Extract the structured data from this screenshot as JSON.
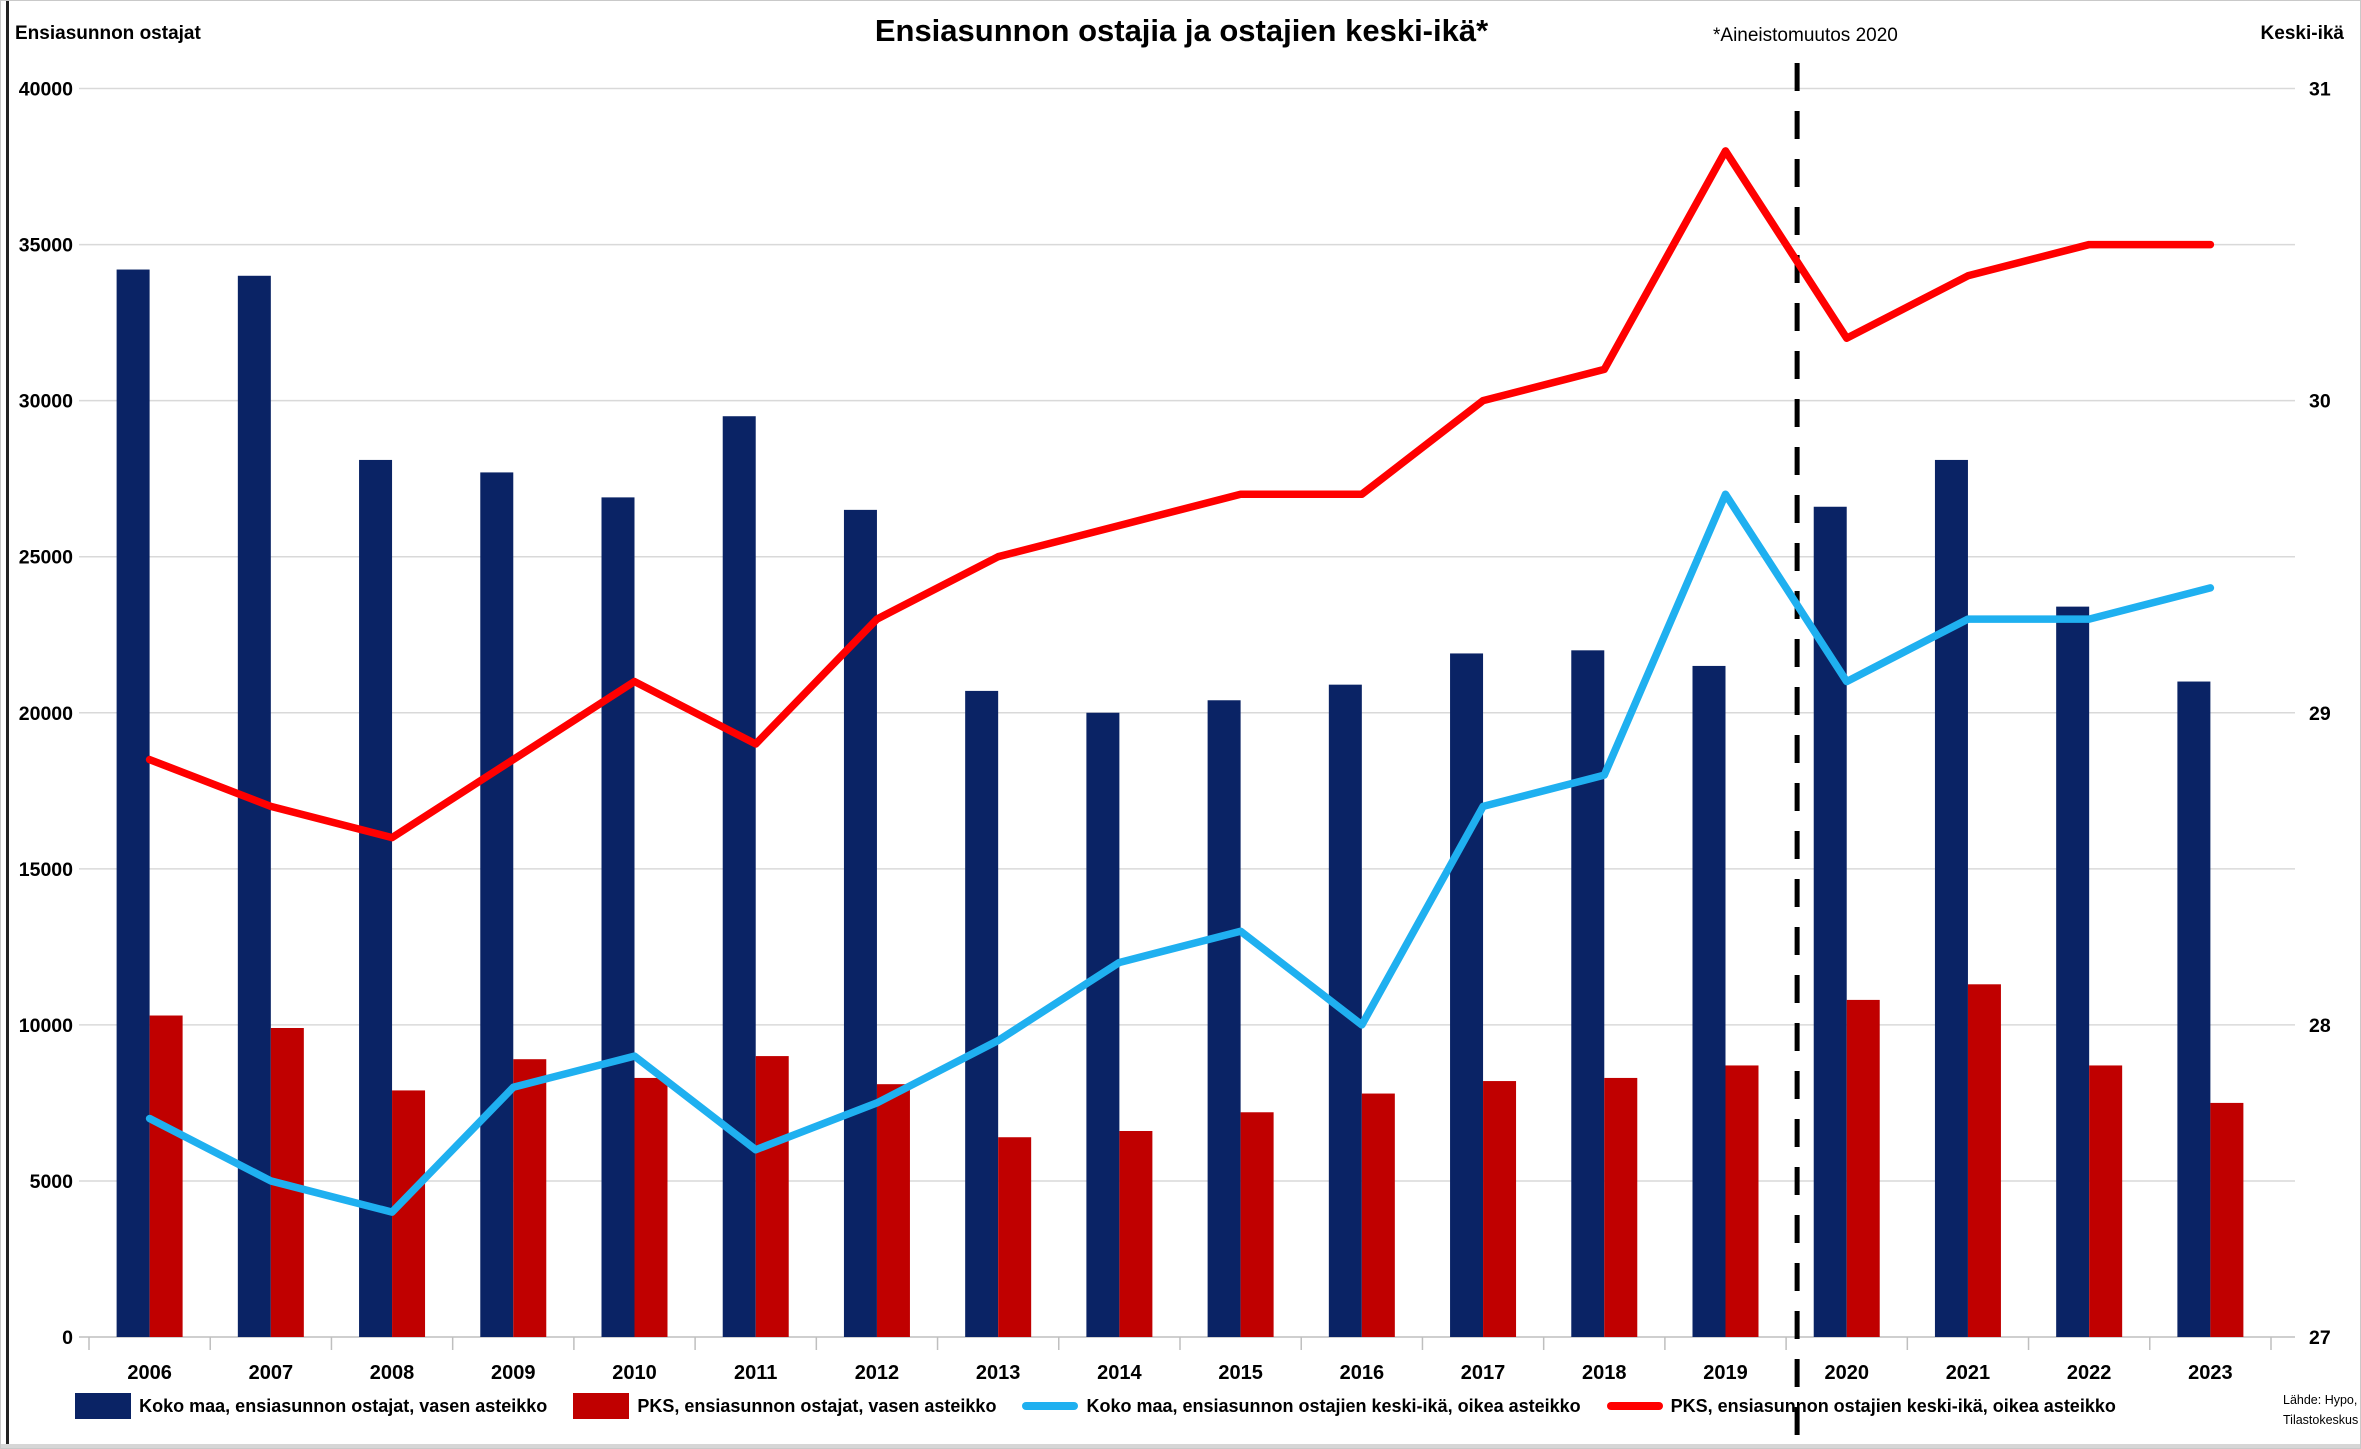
{
  "header": {
    "title": "Ensiasunnon ostajia ja ostajien keski-ikä*",
    "left_axis_title": "Ensiasunnon ostajat",
    "right_axis_title": "Keski-ikä",
    "annotation": "*Aineistomuutos 2020"
  },
  "source": {
    "line1": "Lähde: Hypo,",
    "line2": "Tilastokeskus"
  },
  "colors": {
    "koko_maa_bar": "#0A2365",
    "pks_bar": "#C00000",
    "koko_maa_line": "#1FB0F0",
    "pks_line": "#FF0000",
    "gridline": "#D9D9D9",
    "axis": "#BFBFBF",
    "dashed_divider": "#000000",
    "background": "#FFFFFF"
  },
  "chart_data": {
    "type": "bar+line combo",
    "title": "Ensiasunnon ostajia ja ostajien keski-ikä*",
    "categories": [
      2006,
      2007,
      2008,
      2009,
      2010,
      2011,
      2012,
      2013,
      2014,
      2015,
      2016,
      2017,
      2018,
      2019,
      2020,
      2021,
      2022,
      2023
    ],
    "left_axis": {
      "title": "Ensiasunnon ostajat",
      "min": 0,
      "max": 40000,
      "tick_step": 5000,
      "ticks": [
        0,
        5000,
        10000,
        15000,
        20000,
        25000,
        30000,
        35000,
        40000
      ]
    },
    "right_axis": {
      "title": "Keski-ikä",
      "min": 27,
      "max": 31,
      "ticks": [
        27,
        28,
        29,
        30,
        31
      ]
    },
    "grid": "horizontal",
    "legend_position": "bottom",
    "dashed_divider": {
      "label": "*Aineistomuutos 2020",
      "between_years": [
        2019,
        2020
      ]
    },
    "series": [
      {
        "name": "Koko maa, ensiasunnon ostajat, vasen asteikko",
        "type": "bar",
        "axis": "left",
        "color": "#0A2365",
        "values": [
          34200,
          34000,
          28100,
          27700,
          26900,
          29500,
          26500,
          20700,
          20000,
          20400,
          20900,
          21900,
          22000,
          21500,
          26600,
          28100,
          23400,
          21000
        ]
      },
      {
        "name": "PKS, ensiasunnon ostajat, vasen asteikko",
        "type": "bar",
        "axis": "left",
        "color": "#C00000",
        "values": [
          10300,
          9900,
          7900,
          8900,
          8300,
          9000,
          8100,
          6400,
          6600,
          7200,
          7800,
          8200,
          8300,
          8700,
          10800,
          11300,
          8700,
          7500
        ]
      },
      {
        "name": "Koko maa, ensiasunnon ostajien keski-ikä, oikea asteikko",
        "type": "line",
        "axis": "right",
        "color": "#1FB0F0",
        "values": [
          27.7,
          27.5,
          27.4,
          27.8,
          27.9,
          27.6,
          27.75,
          27.95,
          28.2,
          28.3,
          28.0,
          28.7,
          28.8,
          29.7,
          29.1,
          29.3,
          29.3,
          29.4
        ]
      },
      {
        "name": "PKS, ensiasunnon ostajien keski-ikä, oikea asteikko",
        "type": "line",
        "axis": "right",
        "color": "#FF0000",
        "values": [
          28.85,
          28.7,
          28.6,
          28.85,
          29.1,
          28.9,
          29.3,
          29.5,
          29.6,
          29.7,
          29.7,
          30.0,
          30.1,
          30.8,
          30.2,
          30.4,
          30.5,
          30.5
        ]
      }
    ]
  }
}
